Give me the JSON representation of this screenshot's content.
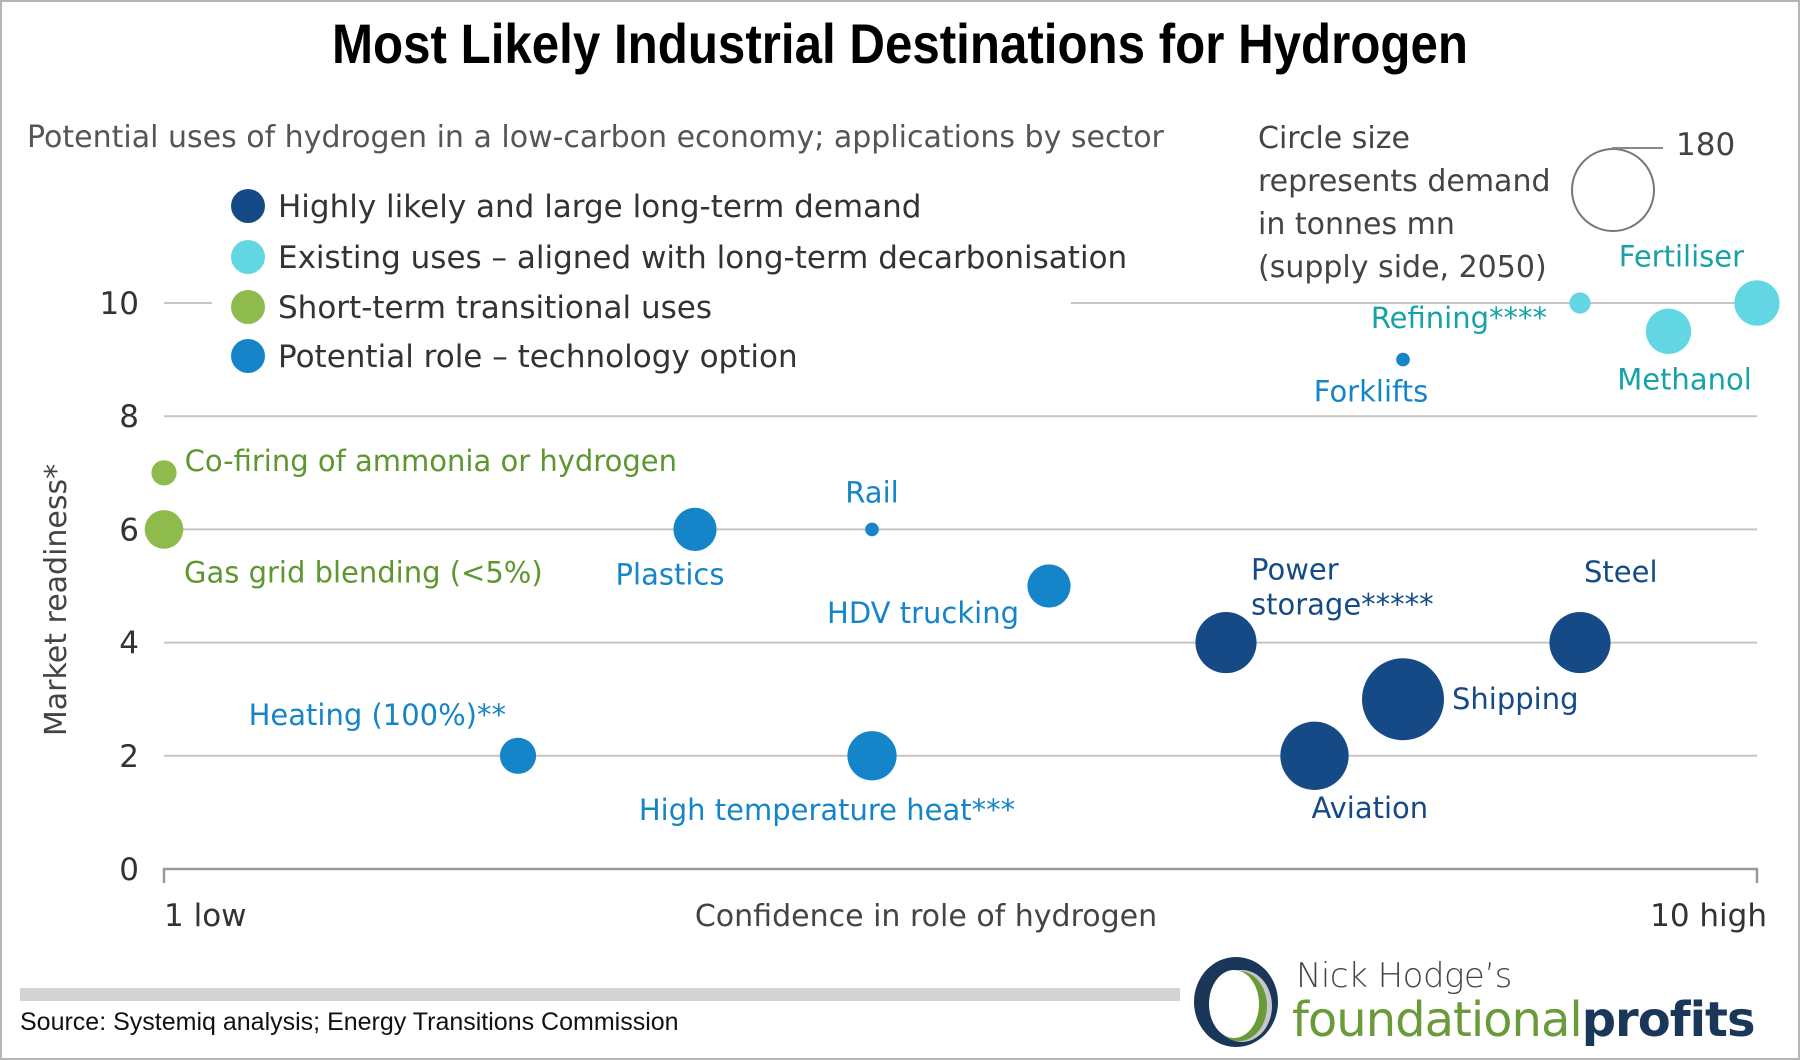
{
  "title": "Most Likely Industrial Destinations for Hydrogen",
  "source": "Source: Systemiq analysis; Energy Transitions Commission",
  "logo": {
    "top_text": "Nick Hodge’s",
    "brand_light": "foundational",
    "brand_bold": "profits",
    "mark_colors": {
      "outer": "#1a3658",
      "inner": "#6a9a3a",
      "shade": "#c8c8c8"
    }
  },
  "colors": {
    "highly_likely": "#164a86",
    "existing": "#62d6e3",
    "short_term": "#8fbb4d",
    "potential": "#1584c8",
    "label_highly_likely": "#164a86",
    "label_existing": "#17a2a8",
    "label_short_term": "#5e962f",
    "label_potential": "#1584c8",
    "grid": "#c9c4c0",
    "axis_text": "#333333"
  },
  "chart_data": {
    "type": "scatter",
    "title": "Most Likely Industrial Destinations for Hydrogen",
    "subtitle": "Potential uses of hydrogen in a low-carbon economy; applications by sector",
    "xlabel": "Confidence in role of hydrogen",
    "ylabel": "Market readiness*",
    "xlim": [
      1,
      10
    ],
    "ylim": [
      0,
      10
    ],
    "x_tick_labels": [
      {
        "value": 1,
        "label": "1 low"
      },
      {
        "value": 10,
        "label": "10 high"
      }
    ],
    "y_ticks": [
      0,
      2,
      4,
      6,
      8,
      10
    ],
    "grid": true,
    "legend_position": "top-left",
    "size_legend": {
      "text": [
        "Circle size",
        "represents demand",
        "in tonnes mn",
        "(supply side, 2050)"
      ],
      "reference_value": 180,
      "reference_label": "180"
    },
    "categories": [
      {
        "key": "highly_likely",
        "label": "Highly likely and large long-term demand"
      },
      {
        "key": "existing",
        "label": "Existing uses  – aligned with long-term decarbonisation"
      },
      {
        "key": "short_term",
        "label": "Short-term transitional uses"
      },
      {
        "key": "potential",
        "label": "Potential role  – technology option"
      }
    ],
    "points": [
      {
        "name": "Co-firing of ammonia or hydrogen",
        "category": "short_term",
        "x": 1,
        "y": 7,
        "demand": 17,
        "label_pos": "right"
      },
      {
        "name": "Gas grid blending (<5%)",
        "category": "short_term",
        "x": 1,
        "y": 6,
        "demand": 40,
        "label_pos": "below-right"
      },
      {
        "name": "Heating (100%)**",
        "category": "potential",
        "x": 3,
        "y": 2,
        "demand": 35,
        "label_pos": "above-left"
      },
      {
        "name": "Plastics",
        "category": "potential",
        "x": 4,
        "y": 6,
        "demand": 50,
        "label_pos": "below"
      },
      {
        "name": "Rail",
        "category": "potential",
        "x": 5,
        "y": 6,
        "demand": 5,
        "label_pos": "above"
      },
      {
        "name": "High temperature heat***",
        "category": "potential",
        "x": 5,
        "y": 2,
        "demand": 65,
        "label_pos": "below"
      },
      {
        "name": "HDV trucking",
        "category": "potential",
        "x": 6,
        "y": 5,
        "demand": 50,
        "label_pos": "below-left"
      },
      {
        "name": "Power storage*****",
        "category": "highly_likely",
        "x": 7,
        "y": 4,
        "demand": 100,
        "label_pos": "above-right"
      },
      {
        "name": "Aviation",
        "category": "highly_likely",
        "x": 7.5,
        "y": 2,
        "demand": 125,
        "label_pos": "below-right"
      },
      {
        "name": "Forklifts",
        "category": "potential",
        "x": 8,
        "y": 9,
        "demand": 5,
        "label_pos": "below"
      },
      {
        "name": "Shipping",
        "category": "highly_likely",
        "x": 8,
        "y": 3,
        "demand": 180,
        "label_pos": "right"
      },
      {
        "name": "Refining****",
        "category": "existing",
        "x": 9,
        "y": 10,
        "demand": 12,
        "label_pos": "below-left"
      },
      {
        "name": "Steel",
        "category": "highly_likely",
        "x": 9,
        "y": 4,
        "demand": 100,
        "label_pos": "above-right"
      },
      {
        "name": "Methanol",
        "category": "existing",
        "x": 9.5,
        "y": 9.5,
        "demand": 55,
        "label_pos": "below"
      },
      {
        "name": "Fertiliser",
        "category": "existing",
        "x": 10,
        "y": 10,
        "demand": 55,
        "label_pos": "above-left"
      }
    ]
  }
}
